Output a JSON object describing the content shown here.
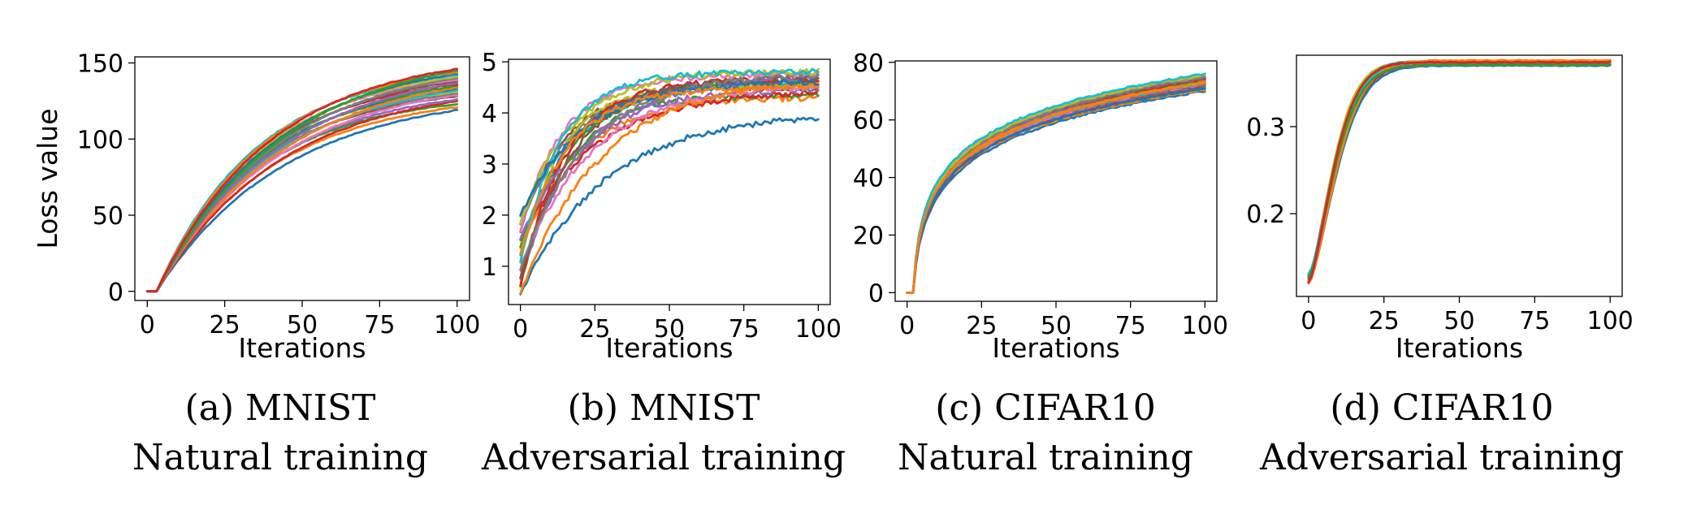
{
  "palette": [
    "#1f77b4",
    "#ff7f0e",
    "#2ca02c",
    "#d62728",
    "#9467bd",
    "#8c564b",
    "#e377c2",
    "#7f7f7f",
    "#bcbd22",
    "#17becf"
  ],
  "chart_data": [
    {
      "type": "line",
      "caption_line1": "(a) MNIST",
      "caption_line2": "Natural training",
      "xlabel": "Iterations",
      "ylabel": "Loss value",
      "xlim": [
        -4,
        104
      ],
      "ylim": [
        -6,
        154
      ],
      "xticks": [
        0,
        25,
        50,
        75,
        100
      ],
      "yticks": [
        0,
        50,
        100,
        150
      ],
      "num_series": 24,
      "model": {
        "shape": "exp",
        "delay": 3,
        "y0": 0,
        "finals": [
          119,
          121,
          123,
          125,
          126,
          128,
          129,
          130,
          131,
          132,
          133,
          134,
          135,
          136,
          137,
          138,
          139,
          140,
          141,
          142,
          143,
          144,
          145,
          146
        ],
        "rate_range": [
          0.024,
          0.031
        ],
        "noise": 0.3
      }
    },
    {
      "type": "line",
      "caption_line1": "(b) MNIST",
      "caption_line2": "Adversarial training",
      "xlabel": "Iterations",
      "ylabel": "",
      "xlim": [
        -4,
        104
      ],
      "ylim": [
        0.25,
        5.05
      ],
      "xticks": [
        0,
        25,
        50,
        75,
        100
      ],
      "yticks": [
        1,
        2,
        3,
        4,
        5
      ],
      "num_series": 22,
      "model": {
        "shape": "exp",
        "delay": 0,
        "y0_range": [
          0.45,
          2.1
        ],
        "finals": [
          3.9,
          4.3,
          4.35,
          4.4,
          4.45,
          4.5,
          4.5,
          4.55,
          4.55,
          4.6,
          4.6,
          4.6,
          4.65,
          4.65,
          4.7,
          4.7,
          4.75,
          4.75,
          4.8,
          4.8,
          4.6,
          4.5
        ],
        "rate_range": [
          0.035,
          0.075
        ],
        "noise": 0.06
      }
    },
    {
      "type": "line",
      "caption_line1": "(c) CIFAR10",
      "caption_line2": "Natural training",
      "xlabel": "Iterations",
      "ylabel": "",
      "xlim": [
        -4,
        104
      ],
      "ylim": [
        -3,
        80.5
      ],
      "xticks": [
        0,
        25,
        50,
        75,
        100
      ],
      "yticks": [
        0,
        20,
        40,
        60,
        80
      ],
      "num_series": 22,
      "model": {
        "shape": "log",
        "delay": 2,
        "y0": 0,
        "finals": [
          70,
          70.5,
          71,
          71.5,
          72,
          72,
          72.5,
          72.5,
          73,
          73,
          73.5,
          73.5,
          74,
          74,
          74.5,
          74.5,
          75,
          75,
          75.5,
          76,
          71,
          72.8
        ],
        "rate_range": [
          0.9,
          1.3
        ],
        "noise": 0.3
      }
    },
    {
      "type": "line",
      "caption_line1": "(d) CIFAR10",
      "caption_line2": "Adversarial training",
      "xlabel": "Iterations",
      "ylabel": "",
      "xlim": [
        -4,
        104
      ],
      "ylim": [
        0.105,
        0.382
      ],
      "xticks": [
        0,
        25,
        50,
        75,
        100
      ],
      "yticks": [
        0.2,
        0.3
      ],
      "num_series": 14,
      "model": {
        "shape": "sat",
        "delay": 0,
        "y0_range": [
          0.12,
          0.132
        ],
        "finals": [
          0.37,
          0.371,
          0.372,
          0.372,
          0.373,
          0.373,
          0.374,
          0.374,
          0.375,
          0.375,
          0.375,
          0.376,
          0.371,
          0.374
        ],
        "rate_range": [
          0.085,
          0.1
        ],
        "noise": 0.0005
      }
    }
  ]
}
